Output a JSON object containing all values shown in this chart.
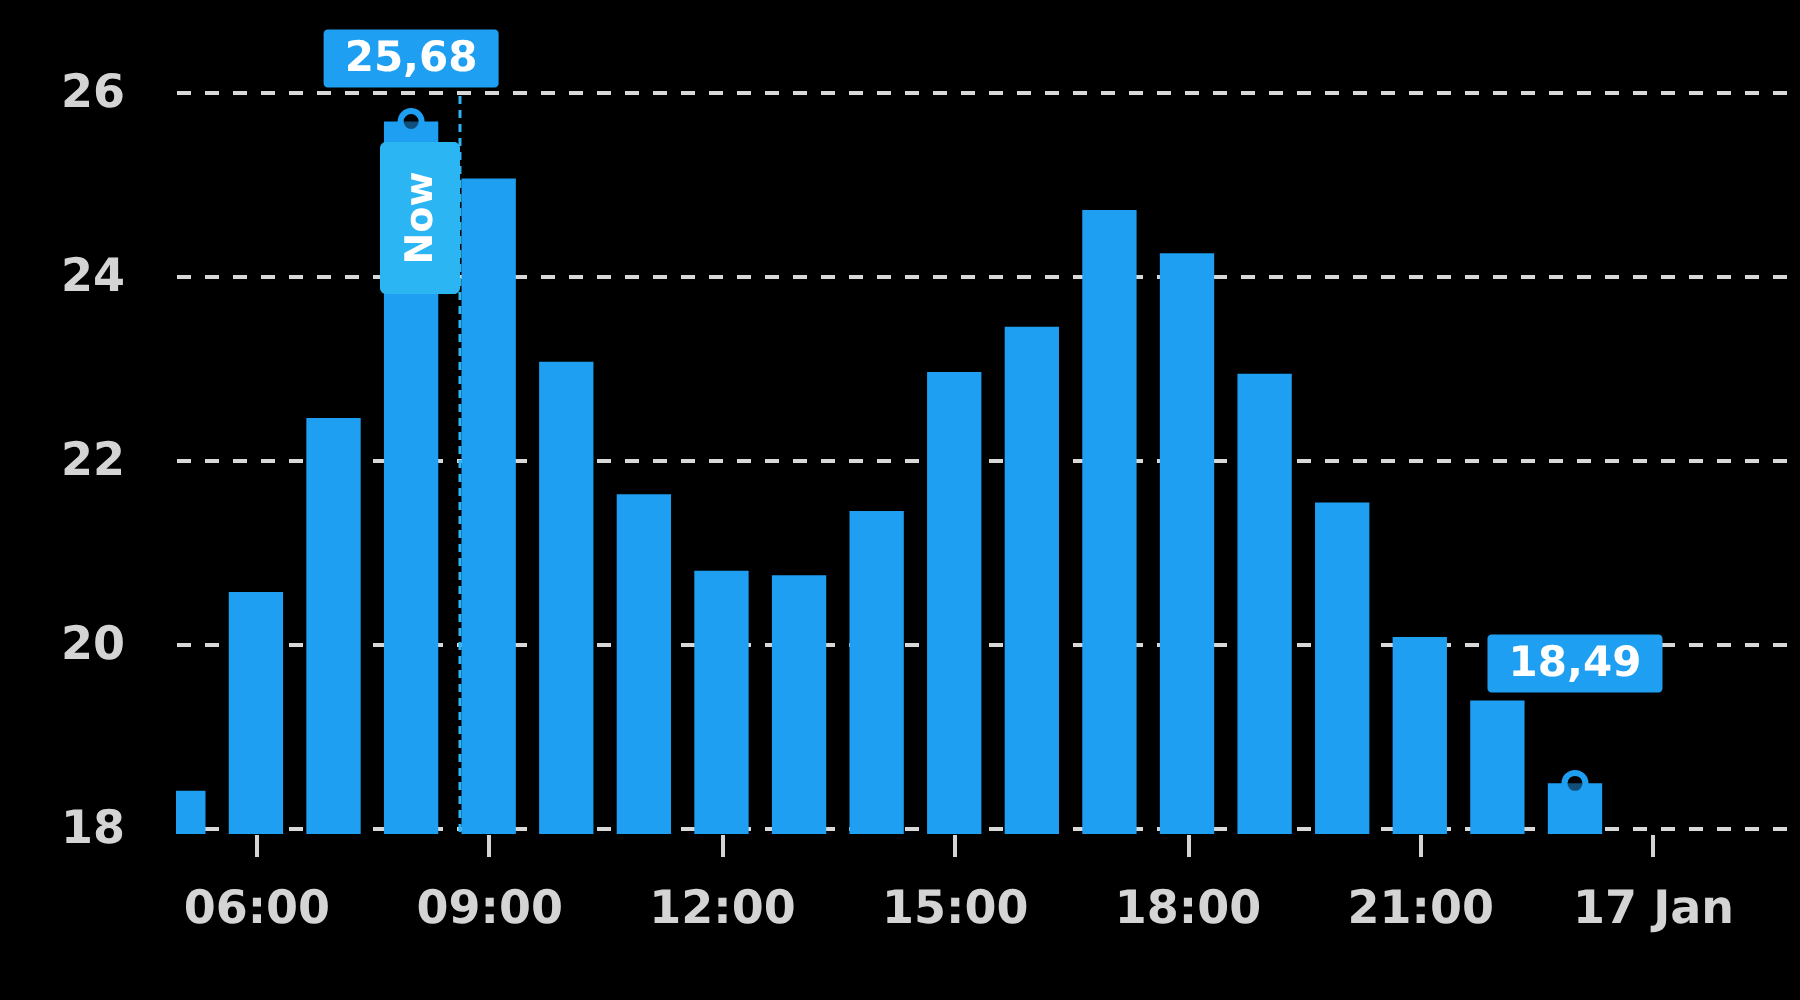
{
  "chart_data": {
    "type": "bar",
    "x": [
      5,
      6,
      7,
      8,
      9,
      10,
      11,
      12,
      13,
      14,
      15,
      16,
      17,
      18,
      19,
      20,
      21,
      22,
      23
    ],
    "values": [
      18.41,
      20.57,
      22.46,
      25.68,
      25.06,
      23.07,
      21.63,
      20.8,
      20.75,
      21.45,
      22.96,
      23.45,
      24.72,
      24.25,
      22.94,
      21.54,
      20.08,
      19.39,
      18.49
    ],
    "color": "#1e9ff2",
    "xlim": [
      4.97,
      25.9
    ],
    "xticks": [
      {
        "value": 6,
        "label": "06:00"
      },
      {
        "value": 9,
        "label": "09:00"
      },
      {
        "value": 12,
        "label": "12:00"
      },
      {
        "value": 15,
        "label": "15:00"
      },
      {
        "value": 18,
        "label": "18:00"
      },
      {
        "value": 21,
        "label": "21:00"
      },
      {
        "value": 24,
        "label": "17 Jan"
      }
    ],
    "ylim": [
      17.94,
      27
    ],
    "yticks": [
      18,
      20,
      22,
      24,
      26
    ],
    "grid": "y",
    "annotations": [
      {
        "text": "25,68",
        "x": 8,
        "y": 25.68
      },
      {
        "text": "18,49",
        "x": 23,
        "y": 18.49
      }
    ],
    "ref_lines": [
      {
        "axis": "x",
        "value": 8.63,
        "label": "Now",
        "color": "#2bb5f3",
        "line_style": "dashed"
      }
    ]
  }
}
